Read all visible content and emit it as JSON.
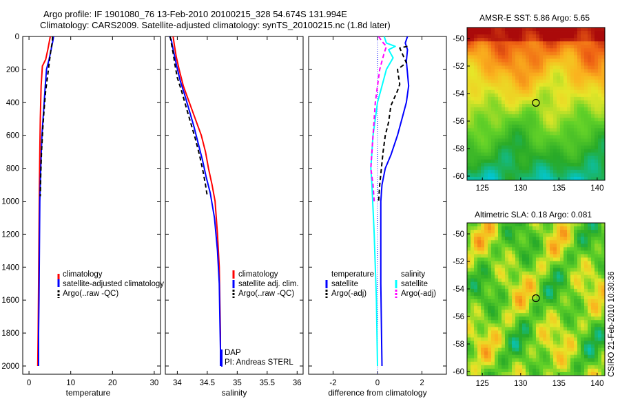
{
  "title_line1": "Argo profile: IF 1901080_76 13-Feb-2010 20100215_328 54.674S 131.994E",
  "title_line2": "Climatology: CARS2009. Satellite-adjusted climatology: synTS_20100215.nc (1.8d later)",
  "chart_data": [
    {
      "type": "line",
      "id": "temperature",
      "xlabel": "temperature",
      "xlim": [
        -1.5,
        31.5
      ],
      "ylim": [
        2050,
        0
      ],
      "xticks": [
        0,
        10,
        20,
        30
      ],
      "yticks": [
        0,
        200,
        400,
        600,
        800,
        1000,
        1200,
        1400,
        1600,
        1800,
        2000
      ],
      "legend": [
        "climatology",
        "satellite-adjusted climatology",
        "Argo(..raw -QC)"
      ],
      "series": [
        {
          "name": "climatology",
          "color": "#ff0000",
          "dash": "",
          "points": [
            [
              5.1,
              0
            ],
            [
              4.8,
              40
            ],
            [
              4.5,
              80
            ],
            [
              4.0,
              140
            ],
            [
              3.2,
              180
            ],
            [
              2.9,
              300
            ],
            [
              2.7,
              500
            ],
            [
              2.6,
              700
            ],
            [
              2.5,
              900
            ],
            [
              2.4,
              1200
            ],
            [
              2.3,
              1500
            ],
            [
              2.2,
              1800
            ],
            [
              2.1,
              2000
            ]
          ]
        },
        {
          "name": "satellite-adjusted climatology",
          "color": "#0000ff",
          "dash": "",
          "points": [
            [
              5.9,
              0
            ],
            [
              5.7,
              30
            ],
            [
              5.3,
              80
            ],
            [
              4.8,
              140
            ],
            [
              4.2,
              200
            ],
            [
              3.9,
              300
            ],
            [
              3.5,
              450
            ],
            [
              3.1,
              600
            ],
            [
              2.8,
              800
            ],
            [
              2.6,
              1000
            ],
            [
              2.5,
              1300
            ],
            [
              2.4,
              1600
            ],
            [
              2.3,
              1800
            ],
            [
              2.3,
              2000
            ]
          ]
        },
        {
          "name": "Argo(..raw -QC)",
          "color": "#000000",
          "dash": "6,4",
          "points": [
            [
              5.65,
              0
            ],
            [
              5.6,
              30
            ],
            [
              5.2,
              90
            ],
            [
              4.9,
              150
            ],
            [
              4.5,
              230
            ],
            [
              4.0,
              330
            ],
            [
              3.6,
              450
            ],
            [
              3.3,
              560
            ],
            [
              3.0,
              700
            ],
            [
              2.8,
              850
            ],
            [
              2.7,
              970
            ]
          ]
        }
      ]
    },
    {
      "type": "line",
      "id": "salinity",
      "xlabel": "salinity",
      "xlim": [
        33.8,
        36.1
      ],
      "ylim": [
        2050,
        0
      ],
      "xticks": [
        34,
        34.5,
        35,
        35.5,
        36
      ],
      "xticklabels": [
        "34",
        "34.5",
        "35",
        "35.5",
        "36"
      ],
      "legend": [
        "climatology",
        "satellite adj. clim.",
        "Argo(..raw -QC)"
      ],
      "series": [
        {
          "name": "climatology",
          "color": "#ff0000",
          "dash": "",
          "points": [
            [
              33.93,
              0
            ],
            [
              33.95,
              50
            ],
            [
              33.98,
              120
            ],
            [
              34.03,
              200
            ],
            [
              34.1,
              300
            ],
            [
              34.2,
              400
            ],
            [
              34.3,
              500
            ],
            [
              34.4,
              600
            ],
            [
              34.47,
              700
            ],
            [
              34.52,
              800
            ],
            [
              34.58,
              900
            ],
            [
              34.63,
              1000
            ],
            [
              34.67,
              1200
            ],
            [
              34.7,
              1400
            ],
            [
              34.71,
              1600
            ],
            [
              34.72,
              1800
            ],
            [
              34.72,
              2000
            ]
          ]
        },
        {
          "name": "satellite adj. clim.",
          "color": "#0000ff",
          "dash": "",
          "points": [
            [
              33.87,
              0
            ],
            [
              33.9,
              20
            ],
            [
              33.92,
              60
            ],
            [
              33.95,
              110
            ],
            [
              33.99,
              180
            ],
            [
              34.05,
              270
            ],
            [
              34.12,
              350
            ],
            [
              34.2,
              450
            ],
            [
              34.28,
              550
            ],
            [
              34.35,
              650
            ],
            [
              34.42,
              750
            ],
            [
              34.48,
              850
            ],
            [
              34.55,
              950
            ],
            [
              34.62,
              1100
            ],
            [
              34.67,
              1300
            ],
            [
              34.7,
              1500
            ],
            [
              34.71,
              1700
            ],
            [
              34.72,
              1900
            ],
            [
              34.72,
              2000
            ]
          ]
        },
        {
          "name": "Argo(..raw -QC)",
          "color": "#000000",
          "dash": "6,4",
          "points": [
            [
              33.88,
              0
            ],
            [
              33.9,
              40
            ],
            [
              33.93,
              100
            ],
            [
              33.96,
              170
            ],
            [
              34.0,
              250
            ],
            [
              34.07,
              330
            ],
            [
              34.14,
              420
            ],
            [
              34.22,
              520
            ],
            [
              34.3,
              620
            ],
            [
              34.37,
              720
            ],
            [
              34.43,
              820
            ],
            [
              34.47,
              900
            ],
            [
              34.5,
              970
            ]
          ]
        }
      ]
    },
    {
      "type": "line",
      "id": "difference",
      "xlabel": "difference from climatology",
      "xlim": [
        -3.1,
        3.1
      ],
      "ylim": [
        2050,
        0
      ],
      "xticks": [
        -2,
        0,
        2
      ],
      "legend_left": [
        "temperature",
        "satellite",
        "Argo(-adj)"
      ],
      "legend_right": [
        "salinity",
        "satellite",
        "Argo(-adj)"
      ],
      "series": [
        {
          "name": "temperature satellite",
          "color": "#0000ff",
          "dash": "",
          "points": [
            [
              1.35,
              0
            ],
            [
              1.25,
              40
            ],
            [
              1.35,
              80
            ],
            [
              1.3,
              150
            ],
            [
              1.4,
              300
            ],
            [
              1.3,
              400
            ],
            [
              1.1,
              500
            ],
            [
              0.9,
              600
            ],
            [
              0.6,
              720
            ],
            [
              0.35,
              800
            ],
            [
              0.2,
              900
            ],
            [
              0.15,
              1000
            ],
            [
              0.15,
              1500
            ],
            [
              0.2,
              2000
            ]
          ]
        },
        {
          "name": "temperature Argo(-adj)",
          "color": "#000000",
          "dash": "6,4",
          "points": [
            [
              1.35,
              60
            ],
            [
              1.0,
              70
            ],
            [
              1.3,
              160
            ],
            [
              0.9,
              200
            ],
            [
              1.0,
              290
            ],
            [
              0.9,
              330
            ],
            [
              0.6,
              420
            ],
            [
              0.5,
              520
            ],
            [
              0.35,
              600
            ],
            [
              0.25,
              700
            ],
            [
              0.1,
              900
            ],
            [
              0.05,
              1000
            ]
          ]
        },
        {
          "name": "salinity satellite",
          "color": "#00ffff",
          "dash": "",
          "points": [
            [
              0.3,
              0
            ],
            [
              0.4,
              40
            ],
            [
              0.8,
              60
            ],
            [
              0.5,
              80
            ],
            [
              0.7,
              130
            ],
            [
              0.4,
              200
            ],
            [
              0.2,
              300
            ],
            [
              0.0,
              400
            ],
            [
              -0.1,
              500
            ],
            [
              -0.2,
              600
            ],
            [
              -0.25,
              700
            ],
            [
              -0.3,
              800
            ],
            [
              -0.25,
              900
            ],
            [
              -0.15,
              1200
            ],
            [
              -0.05,
              1600
            ],
            [
              0.0,
              2000
            ]
          ]
        },
        {
          "name": "salinity Argo(-adj)",
          "color": "#ff00ff",
          "dash": "6,4",
          "points": [
            [
              0.05,
              0
            ],
            [
              0.2,
              30
            ],
            [
              0.4,
              60
            ],
            [
              0.3,
              100
            ],
            [
              0.1,
              200
            ],
            [
              -0.1,
              400
            ],
            [
              -0.15,
              500
            ],
            [
              -0.2,
              600
            ],
            [
              -0.25,
              700
            ],
            [
              -0.3,
              800
            ],
            [
              -0.2,
              900
            ],
            [
              -0.15,
              1000
            ]
          ]
        }
      ]
    },
    {
      "type": "heatmap",
      "id": "sst-map",
      "title": "AMSR-E SST: 5.86 Argo: 5.65",
      "xlim": [
        123,
        141
      ],
      "ylim": [
        -60.3,
        -49.2
      ],
      "xticks": [
        125,
        130,
        135,
        140
      ],
      "yticks": [
        -50,
        -52,
        -54,
        -56,
        -58,
        -60
      ],
      "marker": [
        131.994,
        -54.674
      ]
    },
    {
      "type": "heatmap",
      "id": "sla-map",
      "title": "Altimetric SLA: 0.18 Argo: 0.081",
      "xlim": [
        123,
        141
      ],
      "ylim": [
        -60.3,
        -49.2
      ],
      "xticks": [
        125,
        130,
        135,
        140
      ],
      "yticks": [
        -50,
        -52,
        -54,
        -56,
        -58,
        -60
      ],
      "marker": [
        131.994,
        -54.674
      ]
    }
  ],
  "annotations": {
    "dap": "DAP",
    "pi": "PI: Andreas STERL",
    "stamp": "CSIRO 21-Feb-2010 10:30:36"
  },
  "colors": {
    "map_background": "#ffffff",
    "text": "#000000"
  }
}
